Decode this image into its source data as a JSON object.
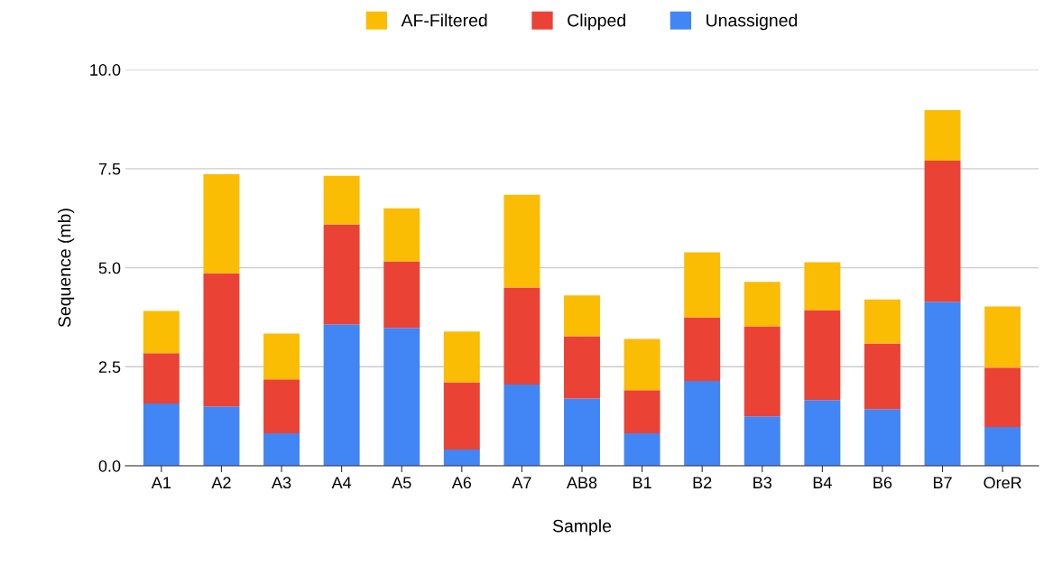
{
  "chart_data": {
    "type": "bar",
    "stacked": true,
    "xlabel": "Sample",
    "ylabel": "Sequence (mb)",
    "categories": [
      "A1",
      "A2",
      "A3",
      "A4",
      "A5",
      "A6",
      "A7",
      "AB8",
      "B1",
      "B2",
      "B3",
      "B4",
      "B6",
      "B7",
      "OreR"
    ],
    "series": [
      {
        "name": "Unassigned",
        "color": "#4285f4",
        "values": [
          1.57,
          1.5,
          0.82,
          3.57,
          3.48,
          0.41,
          2.05,
          1.7,
          0.82,
          2.14,
          1.25,
          1.66,
          1.43,
          4.14,
          0.98
        ]
      },
      {
        "name": "Clipped",
        "color": "#ea4335",
        "values": [
          1.27,
          3.36,
          1.36,
          2.52,
          1.68,
          1.7,
          2.45,
          1.57,
          1.09,
          1.61,
          2.27,
          2.27,
          1.66,
          3.56,
          1.5
        ]
      },
      {
        "name": "AF-Filtered",
        "color": "#fbbc04",
        "values": [
          1.07,
          2.5,
          1.16,
          1.23,
          1.34,
          1.28,
          2.34,
          1.03,
          1.29,
          1.64,
          1.12,
          1.21,
          1.11,
          1.28,
          1.54
        ]
      }
    ],
    "ylim": [
      0,
      10
    ],
    "yticks": [
      {
        "value": 0,
        "label": "0.0"
      },
      {
        "value": 2.5,
        "label": "2.5"
      },
      {
        "value": 5,
        "label": "5.0"
      },
      {
        "value": 7.5,
        "label": "7.5"
      },
      {
        "value": 10,
        "label": "10.0"
      }
    ],
    "grid": "y",
    "legend": "top"
  }
}
